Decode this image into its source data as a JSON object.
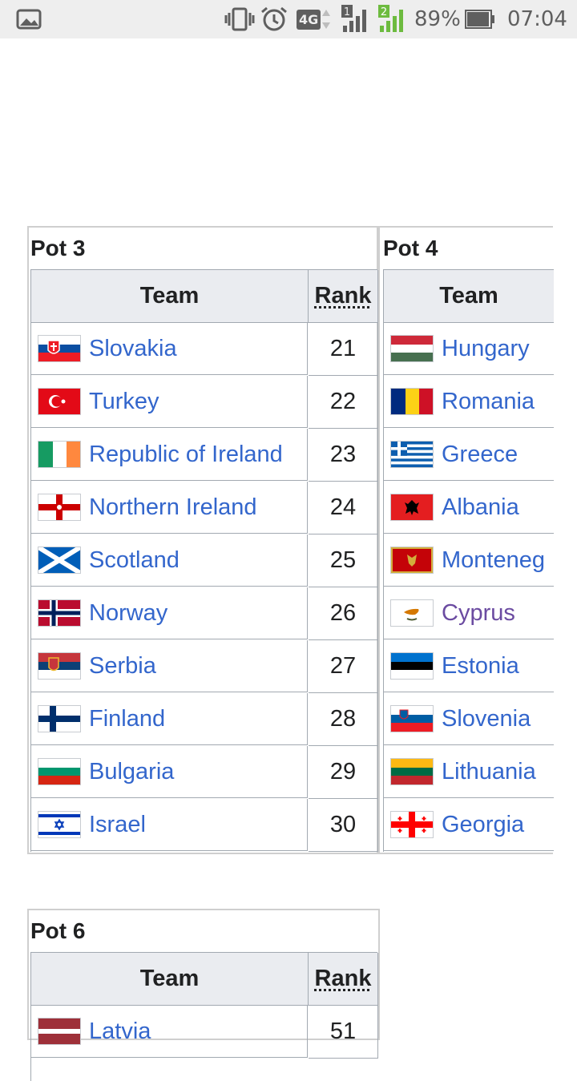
{
  "status_bar": {
    "battery": "89%",
    "time": "07:04",
    "network": "4G",
    "sim1": "1",
    "sim2": "2"
  },
  "pot3": {
    "title": "Pot 3",
    "headers": {
      "team": "Team",
      "rank": "Rank"
    },
    "rows": [
      {
        "team": "Slovakia",
        "rank": "21"
      },
      {
        "team": "Turkey",
        "rank": "22"
      },
      {
        "team": "Republic of Ireland",
        "rank": "23"
      },
      {
        "team": "Northern Ireland",
        "rank": "24"
      },
      {
        "team": "Scotland",
        "rank": "25"
      },
      {
        "team": "Norway",
        "rank": "26"
      },
      {
        "team": "Serbia",
        "rank": "27"
      },
      {
        "team": "Finland",
        "rank": "28"
      },
      {
        "team": "Bulgaria",
        "rank": "29"
      },
      {
        "team": "Israel",
        "rank": "30"
      }
    ]
  },
  "pot4": {
    "title": "Pot 4",
    "headers": {
      "team": "Team"
    },
    "rows": [
      {
        "team": "Hungary"
      },
      {
        "team": "Romania"
      },
      {
        "team": "Greece"
      },
      {
        "team": "Albania"
      },
      {
        "team": "Monteneg"
      },
      {
        "team": "Cyprus"
      },
      {
        "team": "Estonia"
      },
      {
        "team": "Slovenia"
      },
      {
        "team": "Lithuania"
      },
      {
        "team": "Georgia"
      }
    ]
  },
  "pot6": {
    "title": "Pot 6",
    "headers": {
      "team": "Team",
      "rank": "Rank"
    },
    "rows": [
      {
        "team": "Latvia",
        "rank": "51"
      }
    ]
  }
}
